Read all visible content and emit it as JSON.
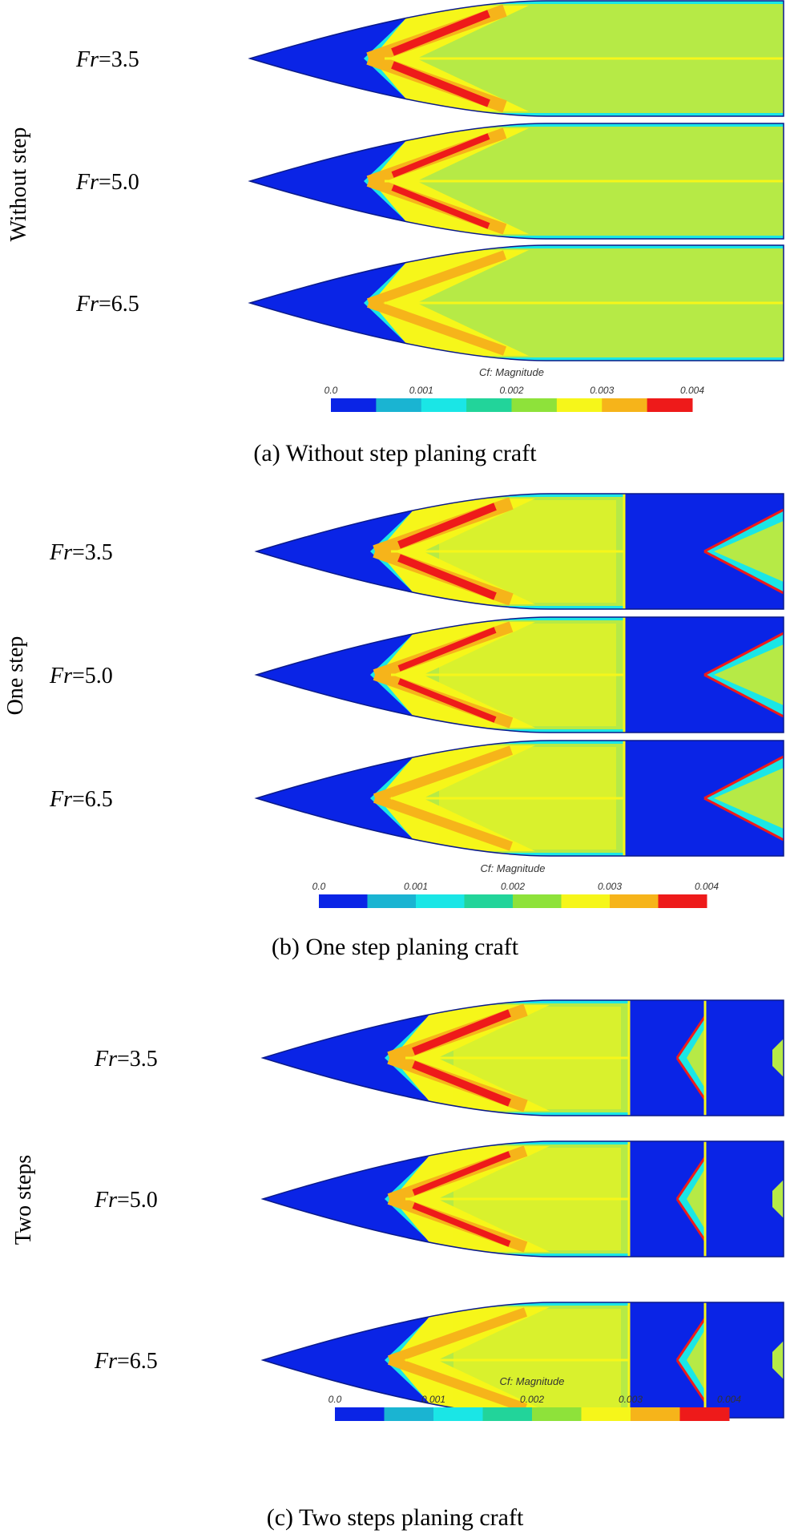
{
  "colorbar": {
    "title": "Cf: Magnitude",
    "ticks": [
      "0.0",
      "0.001",
      "0.002",
      "0.003",
      "0.004"
    ],
    "colors": [
      "#0a24e6",
      "#1ab4d2",
      "#1ae6e6",
      "#22d49a",
      "#8ee23a",
      "#f6f61a",
      "#f6b41a",
      "#ee1a1a"
    ]
  },
  "colors": {
    "blue": "#0a24e6",
    "cyan": "#1ae6e6",
    "green": "#8ee23a",
    "lightgreen": "#b6ea46",
    "yellow": "#f6f61a",
    "orange": "#f6b41a",
    "red": "#ee1a1a"
  },
  "panels": [
    {
      "id": "a",
      "side_label": "Without step",
      "caption": "(a) Without step planing craft",
      "steps": 0,
      "rows": [
        {
          "fr_var": "Fr",
          "fr_value": "=3.5",
          "intensity": 3
        },
        {
          "fr_var": "Fr",
          "fr_value": "=5.0",
          "intensity": 2
        },
        {
          "fr_var": "Fr",
          "fr_value": "=6.5",
          "intensity": 1
        }
      ]
    },
    {
      "id": "b",
      "side_label": "One step",
      "caption": "(b) One step planing craft",
      "steps": 1,
      "rows": [
        {
          "fr_var": "Fr",
          "fr_value": "=3.5",
          "intensity": 3
        },
        {
          "fr_var": "Fr",
          "fr_value": "=5.0",
          "intensity": 2
        },
        {
          "fr_var": "Fr",
          "fr_value": "=6.5",
          "intensity": 1
        }
      ]
    },
    {
      "id": "c",
      "side_label": "Two steps",
      "caption": "(c) Two steps planing craft",
      "steps": 2,
      "rows": [
        {
          "fr_var": "Fr",
          "fr_value": "=3.5",
          "intensity": 3
        },
        {
          "fr_var": "Fr",
          "fr_value": "=5.0",
          "intensity": 2
        },
        {
          "fr_var": "Fr",
          "fr_value": "=6.5",
          "intensity": 1
        }
      ]
    }
  ]
}
